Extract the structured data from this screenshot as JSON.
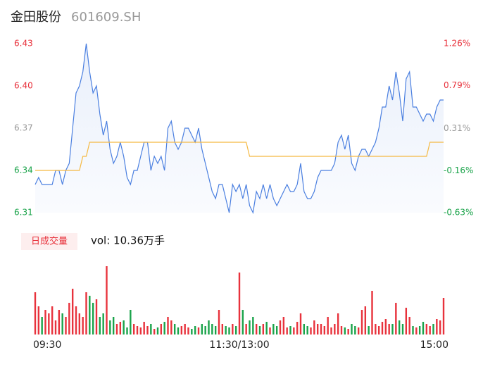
{
  "header": {
    "name": "金田股份",
    "code": "601609.SH"
  },
  "chart_data": [
    {
      "type": "line",
      "xlim": [
        0,
        120
      ],
      "ylim": [
        6.31,
        6.43
      ],
      "yticks": [
        6.31,
        6.34,
        6.37,
        {
          "value": 6.4,
          "label": "6.40"
        },
        6.43
      ],
      "ytick_colors": [
        "#1aa34a",
        "#1aa34a",
        "#999999",
        "#e8323c",
        "#e8323c"
      ],
      "y2lim": [
        -0.63,
        1.26
      ],
      "y2ticks": [
        {
          "value": -0.63,
          "label": "-0.63%"
        },
        {
          "value": -0.16,
          "label": "-0.16%"
        },
        {
          "value": 0.31,
          "label": "0.31%"
        },
        {
          "value": 0.79,
          "label": "0.79%"
        },
        {
          "value": 1.26,
          "label": "1.26%"
        }
      ],
      "series": [
        {
          "color": "#4a7fe0",
          "values": [
            6.33,
            6.335,
            6.33,
            6.33,
            6.33,
            6.33,
            6.34,
            6.34,
            6.33,
            6.34,
            6.345,
            6.37,
            6.395,
            6.4,
            6.41,
            6.43,
            6.41,
            6.395,
            6.4,
            6.38,
            6.365,
            6.375,
            6.355,
            6.345,
            6.35,
            6.36,
            6.35,
            6.335,
            6.33,
            6.34,
            6.34,
            6.35,
            6.36,
            6.36,
            6.34,
            6.35,
            6.345,
            6.35,
            6.34,
            6.37,
            6.375,
            6.36,
            6.355,
            6.36,
            6.37,
            6.37,
            6.365,
            6.36,
            6.37,
            6.355,
            6.345,
            6.335,
            6.325,
            6.32,
            6.33,
            6.33,
            6.32,
            6.31,
            6.33,
            6.325,
            6.33,
            6.32,
            6.33,
            6.315,
            6.31,
            6.325,
            6.32,
            6.33,
            6.32,
            6.33,
            6.32,
            6.315,
            6.32,
            6.325,
            6.33,
            6.325,
            6.325,
            6.33,
            6.345,
            6.325,
            6.32,
            6.32,
            6.325,
            6.335,
            6.34,
            6.34,
            6.34,
            6.34,
            6.345,
            6.36,
            6.365,
            6.355,
            6.365,
            6.345,
            6.34,
            6.35,
            6.355,
            6.355,
            6.35,
            6.355,
            6.36,
            6.37,
            6.385,
            6.385,
            6.4,
            6.39,
            6.41,
            6.395,
            6.375,
            6.405,
            6.41,
            6.385,
            6.385,
            6.38,
            6.375,
            6.38,
            6.38,
            6.375,
            6.385,
            6.39,
            6.39
          ]
        },
        {
          "color": "#f5b942",
          "values": [
            6.34,
            6.34,
            6.34,
            6.34,
            6.34,
            6.34,
            6.34,
            6.34,
            6.34,
            6.34,
            6.34,
            6.34,
            6.34,
            6.34,
            6.35,
            6.35,
            6.36,
            6.36,
            6.36,
            6.36,
            6.36,
            6.36,
            6.36,
            6.36,
            6.36,
            6.36,
            6.36,
            6.36,
            6.36,
            6.36,
            6.36,
            6.36,
            6.36,
            6.36,
            6.36,
            6.36,
            6.36,
            6.36,
            6.36,
            6.36,
            6.36,
            6.36,
            6.36,
            6.36,
            6.36,
            6.36,
            6.36,
            6.36,
            6.36,
            6.36,
            6.36,
            6.36,
            6.36,
            6.36,
            6.36,
            6.36,
            6.36,
            6.36,
            6.36,
            6.36,
            6.36,
            6.36,
            6.36,
            6.35,
            6.35,
            6.35,
            6.35,
            6.35,
            6.35,
            6.35,
            6.35,
            6.35,
            6.35,
            6.35,
            6.35,
            6.35,
            6.35,
            6.35,
            6.35,
            6.35,
            6.35,
            6.35,
            6.35,
            6.35,
            6.35,
            6.35,
            6.35,
            6.35,
            6.35,
            6.35,
            6.35,
            6.35,
            6.35,
            6.35,
            6.35,
            6.35,
            6.35,
            6.35,
            6.35,
            6.35,
            6.35,
            6.35,
            6.35,
            6.35,
            6.35,
            6.35,
            6.35,
            6.35,
            6.35,
            6.35,
            6.35,
            6.35,
            6.35,
            6.35,
            6.35,
            6.35,
            6.36,
            6.36,
            6.36,
            6.36,
            6.36
          ]
        }
      ]
    },
    {
      "type": "volume",
      "label": "日成交量",
      "summary": "vol: 10.36万手",
      "up_color": "#e8323c",
      "down_color": "#1aa34a",
      "xlim": [
        0,
        120
      ],
      "ylim": [
        0,
        100
      ],
      "xticks": [
        {
          "value": 0,
          "label": "09:30"
        },
        {
          "value": 60,
          "label": "11:30/13:00"
        },
        {
          "value": 120,
          "label": "15:00"
        }
      ],
      "values": [
        60,
        40,
        25,
        35,
        30,
        40,
        20,
        35,
        30,
        25,
        45,
        65,
        40,
        30,
        25,
        60,
        55,
        45,
        50,
        25,
        30,
        97,
        20,
        25,
        15,
        18,
        20,
        10,
        35,
        15,
        12,
        10,
        18,
        12,
        15,
        8,
        10,
        15,
        18,
        25,
        20,
        15,
        10,
        12,
        15,
        10,
        8,
        12,
        10,
        15,
        12,
        20,
        15,
        12,
        35,
        15,
        12,
        10,
        15,
        12,
        88,
        35,
        15,
        20,
        25,
        15,
        12,
        15,
        18,
        10,
        15,
        12,
        20,
        25,
        10,
        12,
        10,
        18,
        30,
        15,
        12,
        10,
        20,
        15,
        15,
        12,
        25,
        10,
        15,
        30,
        12,
        10,
        8,
        15,
        12,
        10,
        35,
        40,
        12,
        62,
        15,
        12,
        18,
        22,
        15,
        15,
        45,
        20,
        15,
        38,
        25,
        12,
        10,
        12,
        18,
        15,
        12,
        15,
        22,
        20,
        52
      ]
    }
  ]
}
